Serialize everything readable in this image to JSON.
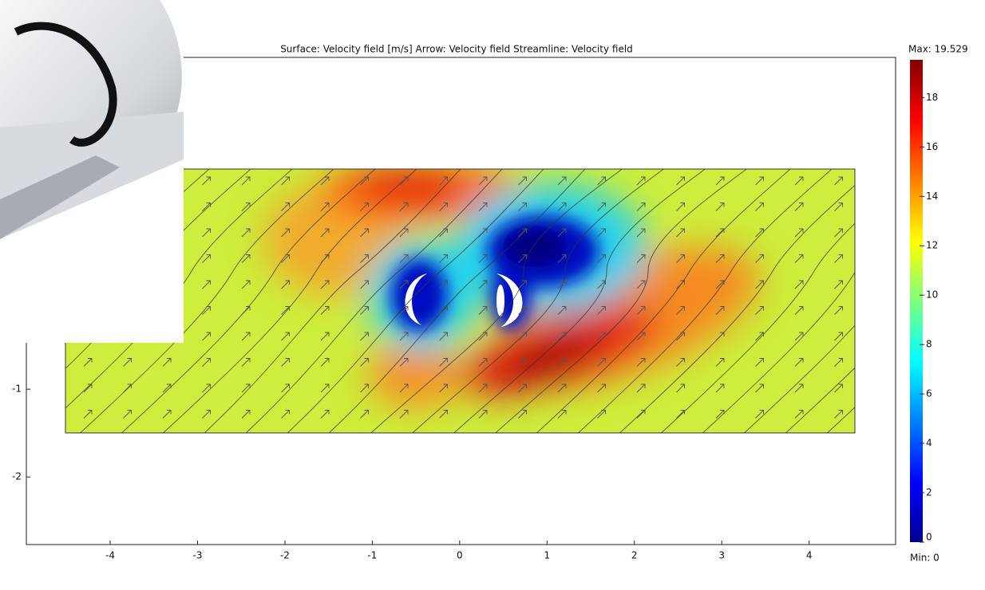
{
  "chart_data": {
    "type": "surface",
    "title": "Surface: Velocity field [m/s]   Arrow: Velocity field   Streamline: Velocity field",
    "xlim": [
      -4.96,
      4.99
    ],
    "xticks": [
      -4,
      -3,
      -2,
      -1,
      0,
      1,
      2,
      3,
      4
    ],
    "ylim": [
      -2.77,
      2.78
    ],
    "yticks": [
      -2,
      -1
    ],
    "colorbar": {
      "lim": [
        0,
        19.529
      ],
      "ticks": [
        0,
        2,
        4,
        6,
        8,
        10,
        12,
        14,
        16,
        18
      ],
      "max": {
        "value": 19.529,
        "label": "Max: 19.529"
      },
      "min": {
        "value": 0,
        "label": "Min: 0"
      }
    }
  }
}
